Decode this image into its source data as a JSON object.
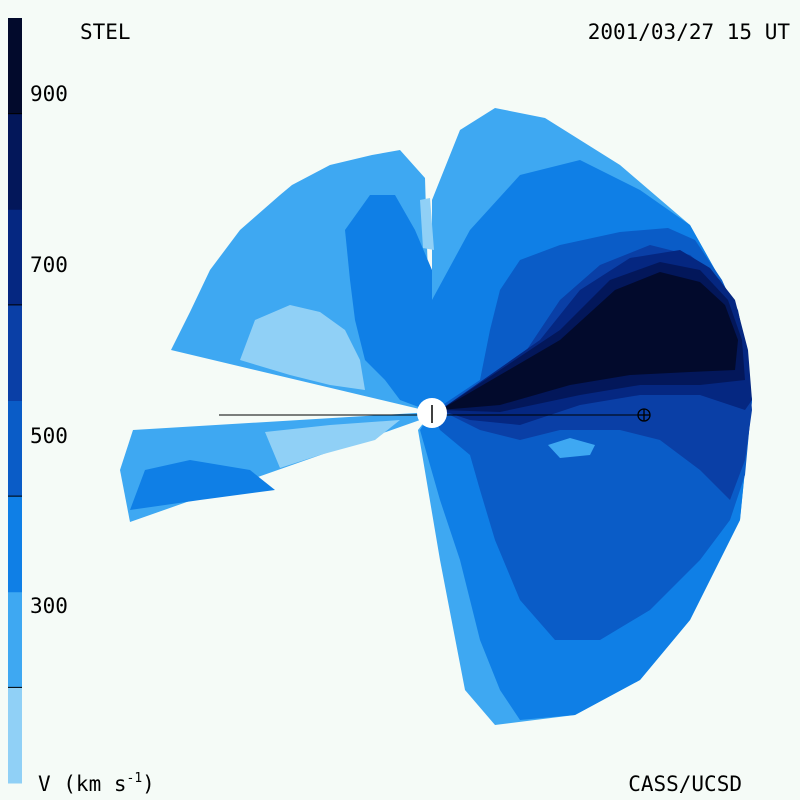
{
  "header": {
    "instrument": "STEL",
    "timestamp": "2001/03/27 15 UT"
  },
  "footer": {
    "units_prefix": "V (km s",
    "units_exponent": "-1",
    "units_suffix": ")",
    "credit": "CASS/UCSD"
  },
  "colorbar": {
    "tick_labels": [
      "900",
      "700",
      "500",
      "300"
    ],
    "tick_values": [
      900,
      700,
      500,
      300
    ],
    "range": [
      200,
      1000
    ],
    "levels": [
      {
        "from": 200,
        "to": 300,
        "color": "#90d0f6"
      },
      {
        "from": 300,
        "to": 400,
        "color": "#3ea8f2"
      },
      {
        "from": 400,
        "to": 500,
        "color": "#0f7fe6"
      },
      {
        "from": 500,
        "to": 600,
        "color": "#0a5cc7"
      },
      {
        "from": 600,
        "to": 700,
        "color": "#0a3fa6"
      },
      {
        "from": 700,
        "to": 800,
        "color": "#052781"
      },
      {
        "from": 800,
        "to": 900,
        "color": "#03175a"
      },
      {
        "from": 900,
        "to": 1000,
        "color": "#020a2c"
      }
    ]
  },
  "map": {
    "sun_marker": "sun-symbol",
    "earth_marker": "earth-symbol"
  }
}
